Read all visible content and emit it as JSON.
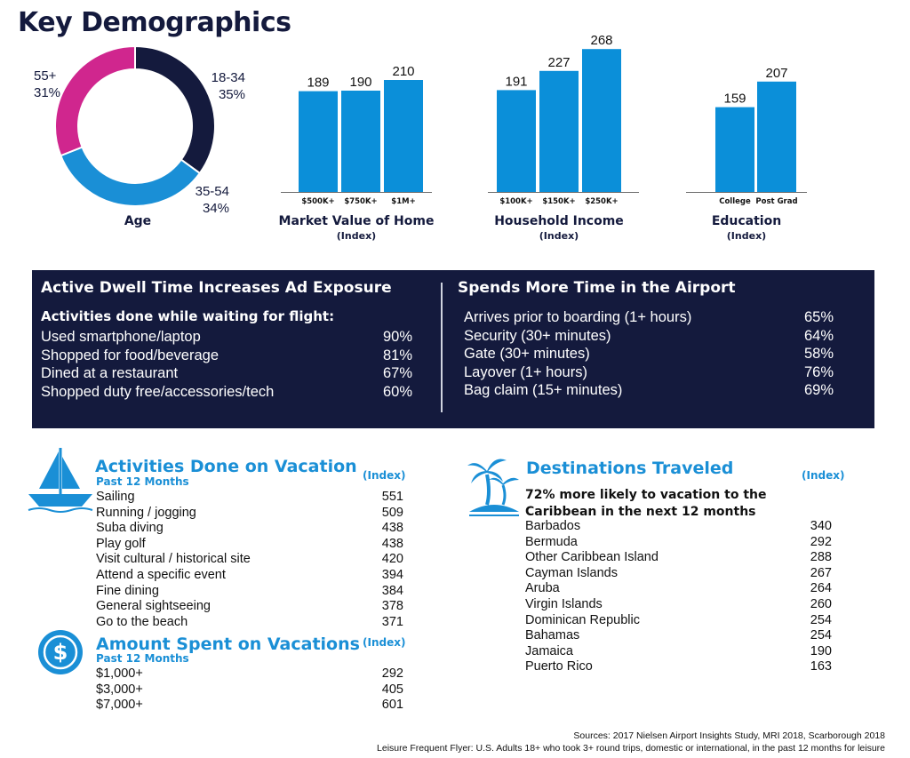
{
  "title": "Key Demographics",
  "chart_data": [
    {
      "type": "pie",
      "title": "Age",
      "categories": [
        "18-34",
        "35-54",
        "55+"
      ],
      "values": [
        35,
        34,
        31
      ],
      "value_labels": [
        "35%",
        "34%",
        "31%"
      ],
      "colors": [
        "#141a3d",
        "#1a8fd6",
        "#d0268e"
      ]
    },
    {
      "type": "bar",
      "title": "Market Value of Home",
      "subtitle": "(Index)",
      "categories": [
        "$500K+",
        "$750K+",
        "$1M+"
      ],
      "values": [
        189,
        190,
        210
      ],
      "color": "#0b8fd9"
    },
    {
      "type": "bar",
      "title": "Household Income",
      "subtitle": "(Index)",
      "categories": [
        "$100K+",
        "$150K+",
        "$250K+"
      ],
      "values": [
        191,
        227,
        268
      ],
      "color": "#0b8fd9"
    },
    {
      "type": "bar",
      "title": "Education",
      "subtitle": "(Index)",
      "categories": [
        "College",
        "Post Grad"
      ],
      "values": [
        159,
        207
      ],
      "color": "#0b8fd9"
    }
  ],
  "panel": {
    "left": {
      "heading": "Active Dwell Time Increases Ad Exposure",
      "subheading": "Activities done while waiting for flight:",
      "rows": [
        {
          "label": "Used smartphone/laptop",
          "value": "90%"
        },
        {
          "label": "Shopped for food/beverage",
          "value": "81%"
        },
        {
          "label": "Dined at a restaurant",
          "value": "67%"
        },
        {
          "label": "Shopped duty free/accessories/tech",
          "value": "60%"
        }
      ]
    },
    "right": {
      "heading": "Spends More Time in the Airport",
      "rows": [
        {
          "label": "Arrives prior to boarding (1+ hours)",
          "value": "65%"
        },
        {
          "label": "Security (30+ minutes)",
          "value": "64%"
        },
        {
          "label": "Gate (30+ minutes)",
          "value": "58%"
        },
        {
          "label": "Layover (1+ hours)",
          "value": "76%"
        },
        {
          "label": "Bag claim (15+ minutes)",
          "value": "69%"
        }
      ]
    }
  },
  "vacation": {
    "title": "Activities Done on Vacation",
    "subtitle": "Past 12 Months",
    "index_label": "(Index)",
    "rows": [
      {
        "label": "Sailing",
        "value": "551"
      },
      {
        "label": "Running / jogging",
        "value": "509"
      },
      {
        "label": "Suba diving",
        "value": "438"
      },
      {
        "label": "Play golf",
        "value": "438"
      },
      {
        "label": "Visit cultural / historical site",
        "value": "420"
      },
      {
        "label": "Attend a specific event",
        "value": "394"
      },
      {
        "label": "Fine dining",
        "value": "384"
      },
      {
        "label": "General sightseeing",
        "value": "378"
      },
      {
        "label": "Go to the beach",
        "value": "371"
      }
    ]
  },
  "spent": {
    "title": "Amount Spent on Vacations",
    "subtitle": "Past 12 Months",
    "index_label": "(Index)",
    "rows": [
      {
        "label": "$1,000+",
        "value": "292"
      },
      {
        "label": "$3,000+",
        "value": "405"
      },
      {
        "label": "$7,000+",
        "value": "601"
      }
    ]
  },
  "destinations": {
    "title": "Destinations Traveled",
    "index_label": "(Index)",
    "callout_line1": "72% more likely to vacation to the",
    "callout_line2": "Caribbean in the next 12 months",
    "rows": [
      {
        "label": "Barbados",
        "value": "340"
      },
      {
        "label": "Bermuda",
        "value": "292"
      },
      {
        "label": "Other Caribbean Island",
        "value": "288"
      },
      {
        "label": "Cayman Islands",
        "value": "267"
      },
      {
        "label": "Aruba",
        "value": "264"
      },
      {
        "label": "Virgin Islands",
        "value": "260"
      },
      {
        "label": "Dominican Republic",
        "value": "254"
      },
      {
        "label": "Bahamas",
        "value": "254"
      },
      {
        "label": "Jamaica",
        "value": "190"
      },
      {
        "label": "Puerto Rico",
        "value": "163"
      }
    ]
  },
  "footer": {
    "line1": "Sources: 2017 Nielsen Airport Insights Study, MRI 2018, Scarborough 2018",
    "line2": "Leisure Frequent Flyer: U.S. Adults 18+ who took 3+ round trips, domestic or international,  in the past 12 months for leisure"
  },
  "icons": {
    "sailboat": "sailboat-icon",
    "palm": "palm-island-icon",
    "dollar": "dollar-coin-icon"
  },
  "colors": {
    "navy": "#141a3d",
    "blue": "#1a8fd6",
    "magenta": "#d0268e"
  }
}
